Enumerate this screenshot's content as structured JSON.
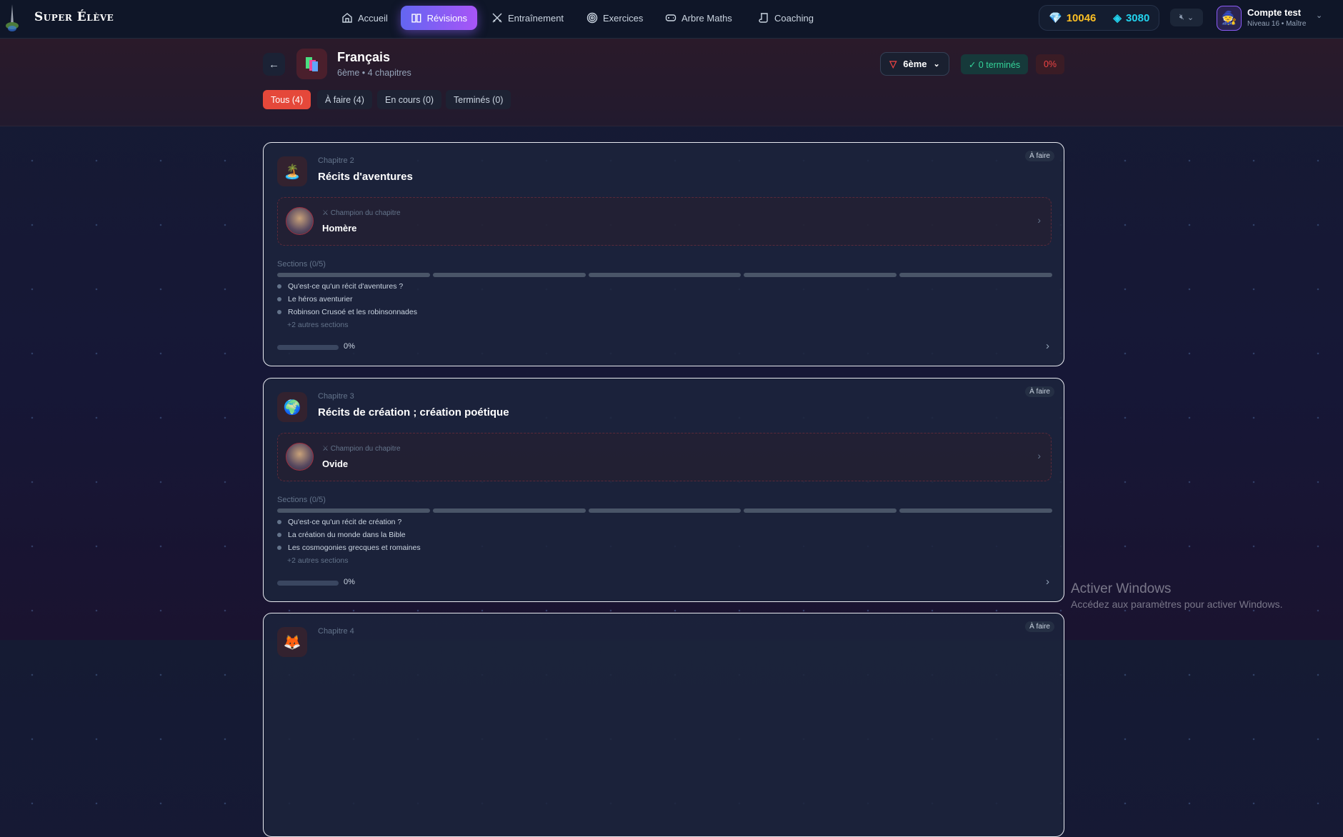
{
  "app": {
    "brand": "Super Élève"
  },
  "nav": {
    "items": [
      {
        "label": "Accueil",
        "icon": "home-icon"
      },
      {
        "label": "Révisions",
        "icon": "book-icon",
        "active": true
      },
      {
        "label": "Entraînement",
        "icon": "swords-icon"
      },
      {
        "label": "Exercices",
        "icon": "target-icon"
      },
      {
        "label": "Arbre Maths",
        "icon": "gamepad-icon"
      },
      {
        "label": "Coaching",
        "icon": "scroll-icon"
      }
    ]
  },
  "currency": {
    "gold": "10046",
    "gems": "3080",
    "gold_color": "#fbbf24",
    "gems_color": "#22d3ee"
  },
  "sound": {
    "icon": "volume-mute-icon"
  },
  "user": {
    "name": "Compte test",
    "level": "Niveau 16 • Maître"
  },
  "subject": {
    "title": "Français",
    "subtitle": "6ème • 4 chapitres",
    "grade": "6ème",
    "completed": "✓ 0 terminés",
    "percent": "0%"
  },
  "tabs": [
    {
      "label": "Tous (4)",
      "active": true
    },
    {
      "label": "À faire (4)"
    },
    {
      "label": "En cours (0)"
    },
    {
      "label": "Terminés (0)"
    }
  ],
  "chapters": [
    {
      "label": "Chapitre 2",
      "title": "Récits d'aventures",
      "icon": "🏝️",
      "badge": "À faire",
      "champion_label": "Champion du chapitre",
      "champion": "Homère",
      "sections_label": "Sections (0/5)",
      "sections": [
        "Qu'est-ce qu'un récit d'aventures ?",
        "Le héros aventurier",
        "Robinson Crusoé et les robinsonnades"
      ],
      "more": "+2 autres sections",
      "progress": 0,
      "progress_label": "0%"
    },
    {
      "label": "Chapitre 3",
      "title": "Récits de création ; création poétique",
      "icon": "🌍",
      "badge": "À faire",
      "champion_label": "Champion du chapitre",
      "champion": "Ovide",
      "sections_label": "Sections (0/5)",
      "sections": [
        "Qu'est-ce qu'un récit de création ?",
        "La création du monde dans la Bible",
        "Les cosmogonies grecques et romaines"
      ],
      "more": "+2 autres sections",
      "progress": 0,
      "progress_label": "0%"
    },
    {
      "label": "Chapitre 4",
      "icon": "🦊",
      "badge": "À faire"
    }
  ],
  "watermark": {
    "title": "Activer Windows",
    "subtitle": "Accédez aux paramètres pour activer Windows."
  }
}
